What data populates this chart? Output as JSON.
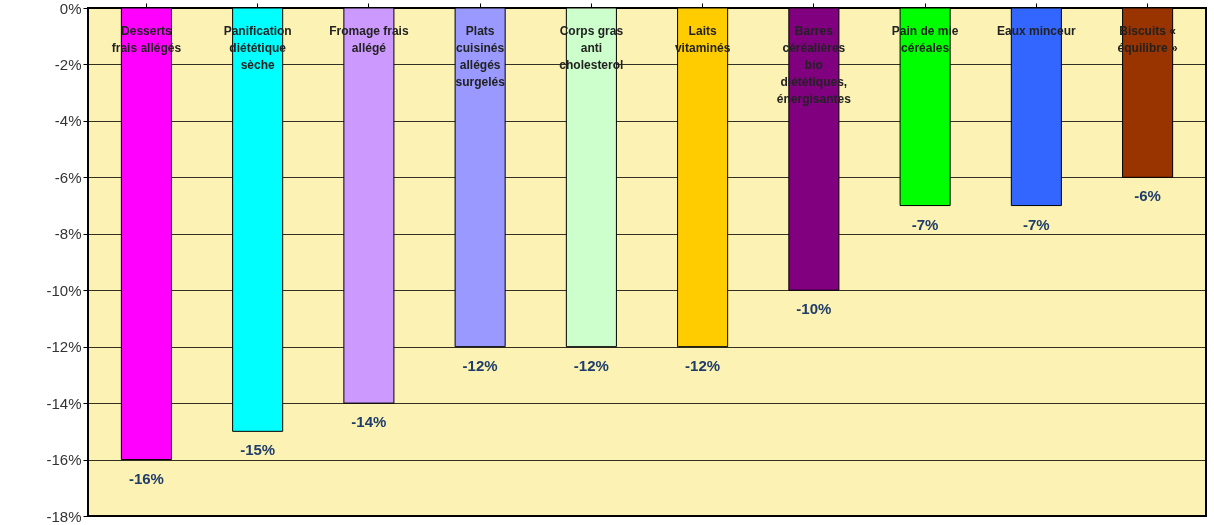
{
  "chart_data": {
    "type": "bar",
    "categories": [
      "Desserts frais allégés",
      "Panification diététique sèche",
      "Fromage frais allégé",
      "Plats cuisinés allégés surgelés",
      "Corps gras anti cholesterol",
      "Laits vitaminés",
      "Barres céréalières bio diététiques, énergisantes",
      "Pain de mie céréales",
      "Eaux minceur",
      "Biscuits « équilibre »"
    ],
    "values": [
      -16,
      -15,
      -14,
      -12,
      -12,
      -12,
      -10,
      -7,
      -7,
      -6
    ],
    "colors": [
      "#ff00ff",
      "#00ffff",
      "#cc99ff",
      "#9999ff",
      "#ccffcc",
      "#ffcc00",
      "#800080",
      "#00ff00",
      "#3366ff",
      "#993300"
    ],
    "value_labels": [
      "-16%",
      "-15%",
      "-14%",
      "-12%",
      "-12%",
      "-12%",
      "-10%",
      "-7%",
      "-7%",
      "-6%"
    ],
    "ylim": [
      -18,
      0
    ],
    "yticks": [
      {
        "value": 0,
        "label": "0%"
      },
      {
        "value": -2,
        "label": "-2%"
      },
      {
        "value": -4,
        "label": "-4%"
      },
      {
        "value": -6,
        "label": "-6%"
      },
      {
        "value": -8,
        "label": "-8%"
      },
      {
        "value": -10,
        "label": "-10%"
      },
      {
        "value": -12,
        "label": "-12%"
      },
      {
        "value": -14,
        "label": "-14%"
      },
      {
        "value": -16,
        "label": "-16%"
      },
      {
        "value": -18,
        "label": "-18%"
      }
    ],
    "grid": "y"
  }
}
